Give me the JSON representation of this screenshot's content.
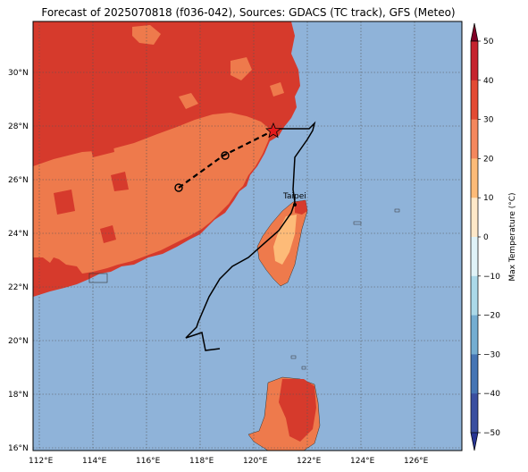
{
  "title": "Forecast of 2025070818 (f036-042), Sources: GDACS (TC track), GFS (Meteo)",
  "map": {
    "lon_ticks": [
      "112°E",
      "114°E",
      "116°E",
      "118°E",
      "120°E",
      "122°E",
      "124°E",
      "126°E"
    ],
    "lat_ticks": [
      "30°N",
      "28°N",
      "26°N",
      "24°N",
      "22°N",
      "20°N",
      "18°N",
      "16°N"
    ],
    "city_label": "Taipei",
    "colors": {
      "ocean": "#8fb3d9",
      "t20_30": "#ee7a4c",
      "t30_40": "#d63a2c",
      "t10_20": "#fdbb78",
      "track": "#000000",
      "current_marker": "#e41a1c"
    }
  },
  "colorbar": {
    "label": "Max Temperature (°C)",
    "ticks": [
      "50",
      "40",
      "30",
      "20",
      "10",
      "0",
      "−10",
      "−20",
      "−30",
      "−40",
      "−50"
    ],
    "colors": [
      "#800026",
      "#c6232e",
      "#e34a33",
      "#f4875d",
      "#fdbb78",
      "#fee8c8",
      "#e0f3f8",
      "#abd9e9",
      "#74add1",
      "#4575b4",
      "#3a4fa0",
      "#283593"
    ]
  }
}
